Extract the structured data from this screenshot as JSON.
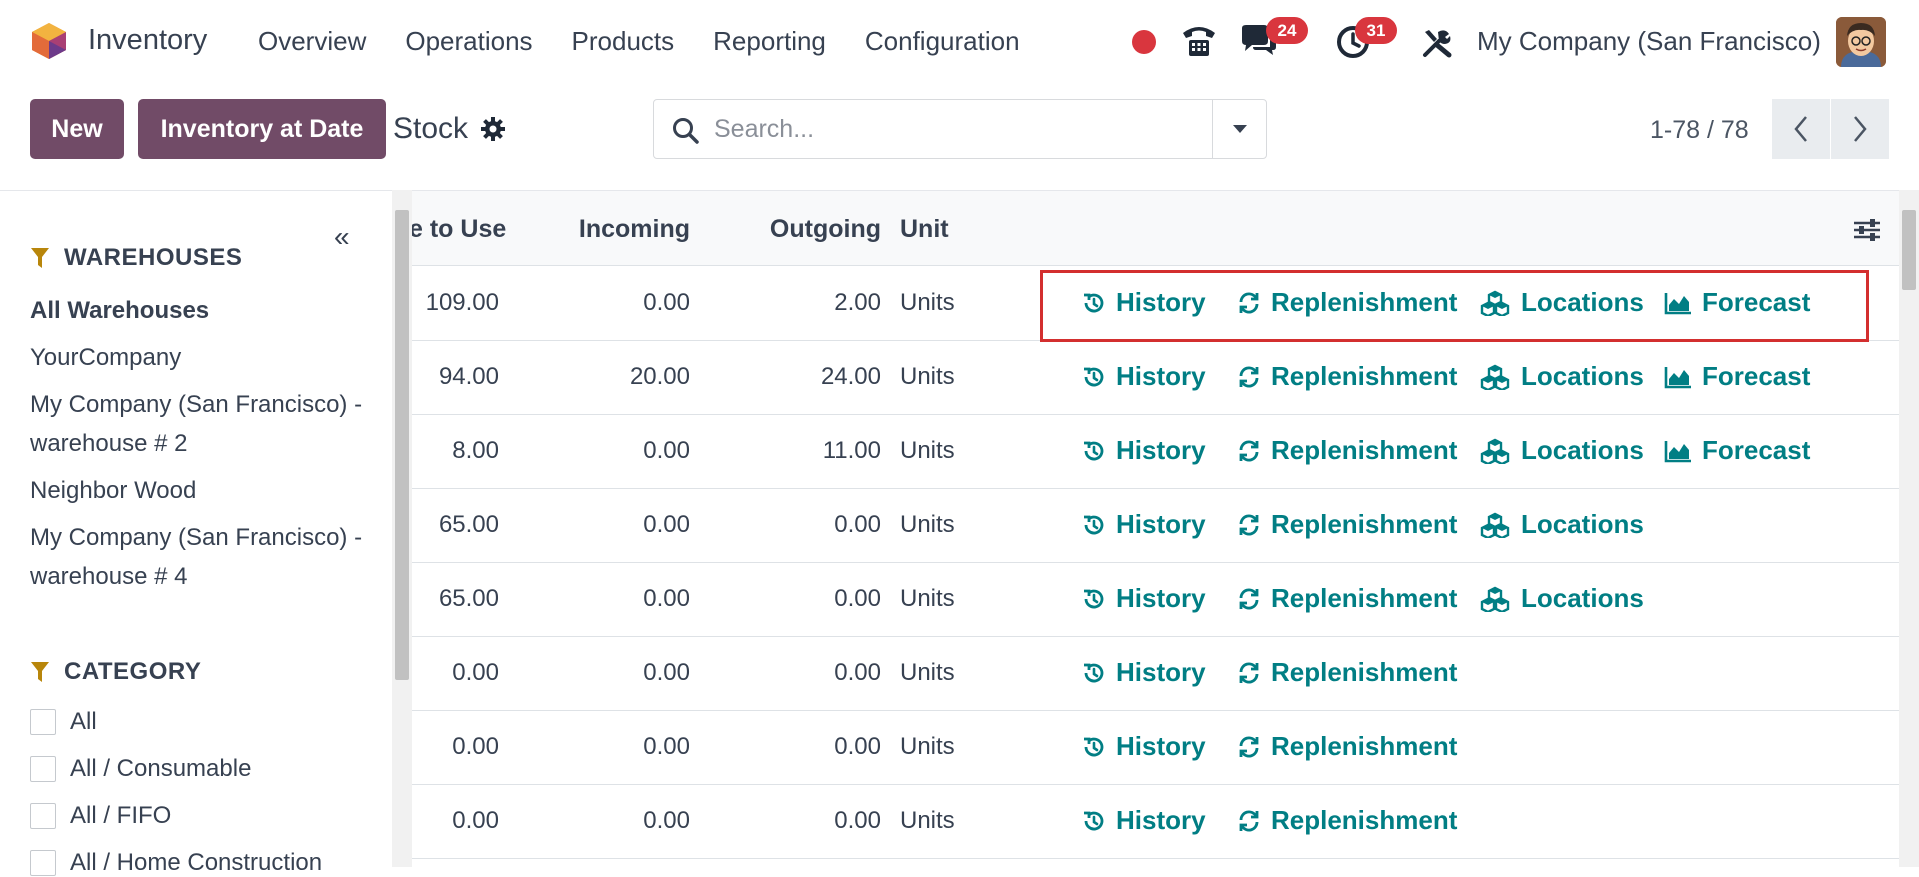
{
  "navbar": {
    "app_title": "Inventory",
    "menu": [
      "Overview",
      "Operations",
      "Products",
      "Reporting",
      "Configuration"
    ],
    "chat_count": "24",
    "activity_count": "31",
    "company": "My Company (San Francisco)"
  },
  "control": {
    "new_label": "New",
    "inventory_at_date_label": "Inventory at Date",
    "breadcrumb": "Stock",
    "search_placeholder": "Search...",
    "pager": "1-78 / 78"
  },
  "sidebar": {
    "warehouses_title": "WAREHOUSES",
    "warehouses": [
      "All Warehouses",
      "YourCompany",
      "My Company (San Francisco) - warehouse # 2",
      "Neighbor Wood",
      "My Company (San Francisco) - warehouse # 4"
    ],
    "category_title": "CATEGORY",
    "categories": [
      "All",
      "All / Consumable",
      "All / FIFO",
      "All / Home Construction"
    ]
  },
  "table": {
    "headers": {
      "free_to_use": "e to Use",
      "incoming": "Incoming",
      "outgoing": "Outgoing",
      "unit": "Unit"
    },
    "action_labels": {
      "history": "History",
      "replenishment": "Replenishment",
      "locations": "Locations",
      "forecast": "Forecast"
    },
    "rows": [
      {
        "free": "109.00",
        "incoming": "0.00",
        "outgoing": "2.00",
        "unit": "Units",
        "locations": true,
        "forecast": true
      },
      {
        "free": "94.00",
        "incoming": "20.00",
        "outgoing": "24.00",
        "unit": "Units",
        "locations": true,
        "forecast": true
      },
      {
        "free": "8.00",
        "incoming": "0.00",
        "outgoing": "11.00",
        "unit": "Units",
        "locations": true,
        "forecast": true
      },
      {
        "free": "65.00",
        "incoming": "0.00",
        "outgoing": "0.00",
        "unit": "Units",
        "locations": true,
        "forecast": false
      },
      {
        "free": "65.00",
        "incoming": "0.00",
        "outgoing": "0.00",
        "unit": "Units",
        "locations": true,
        "forecast": false
      },
      {
        "free": "0.00",
        "incoming": "0.00",
        "outgoing": "0.00",
        "unit": "Units",
        "locations": false,
        "forecast": false
      },
      {
        "free": "0.00",
        "incoming": "0.00",
        "outgoing": "0.00",
        "unit": "Units",
        "locations": false,
        "forecast": false
      },
      {
        "free": "0.00",
        "incoming": "0.00",
        "outgoing": "0.00",
        "unit": "Units",
        "locations": false,
        "forecast": false
      }
    ]
  },
  "colors": {
    "brand": "#714b67",
    "action": "#017e84",
    "badge": "#d9363e",
    "highlight": "#d32f2f"
  }
}
